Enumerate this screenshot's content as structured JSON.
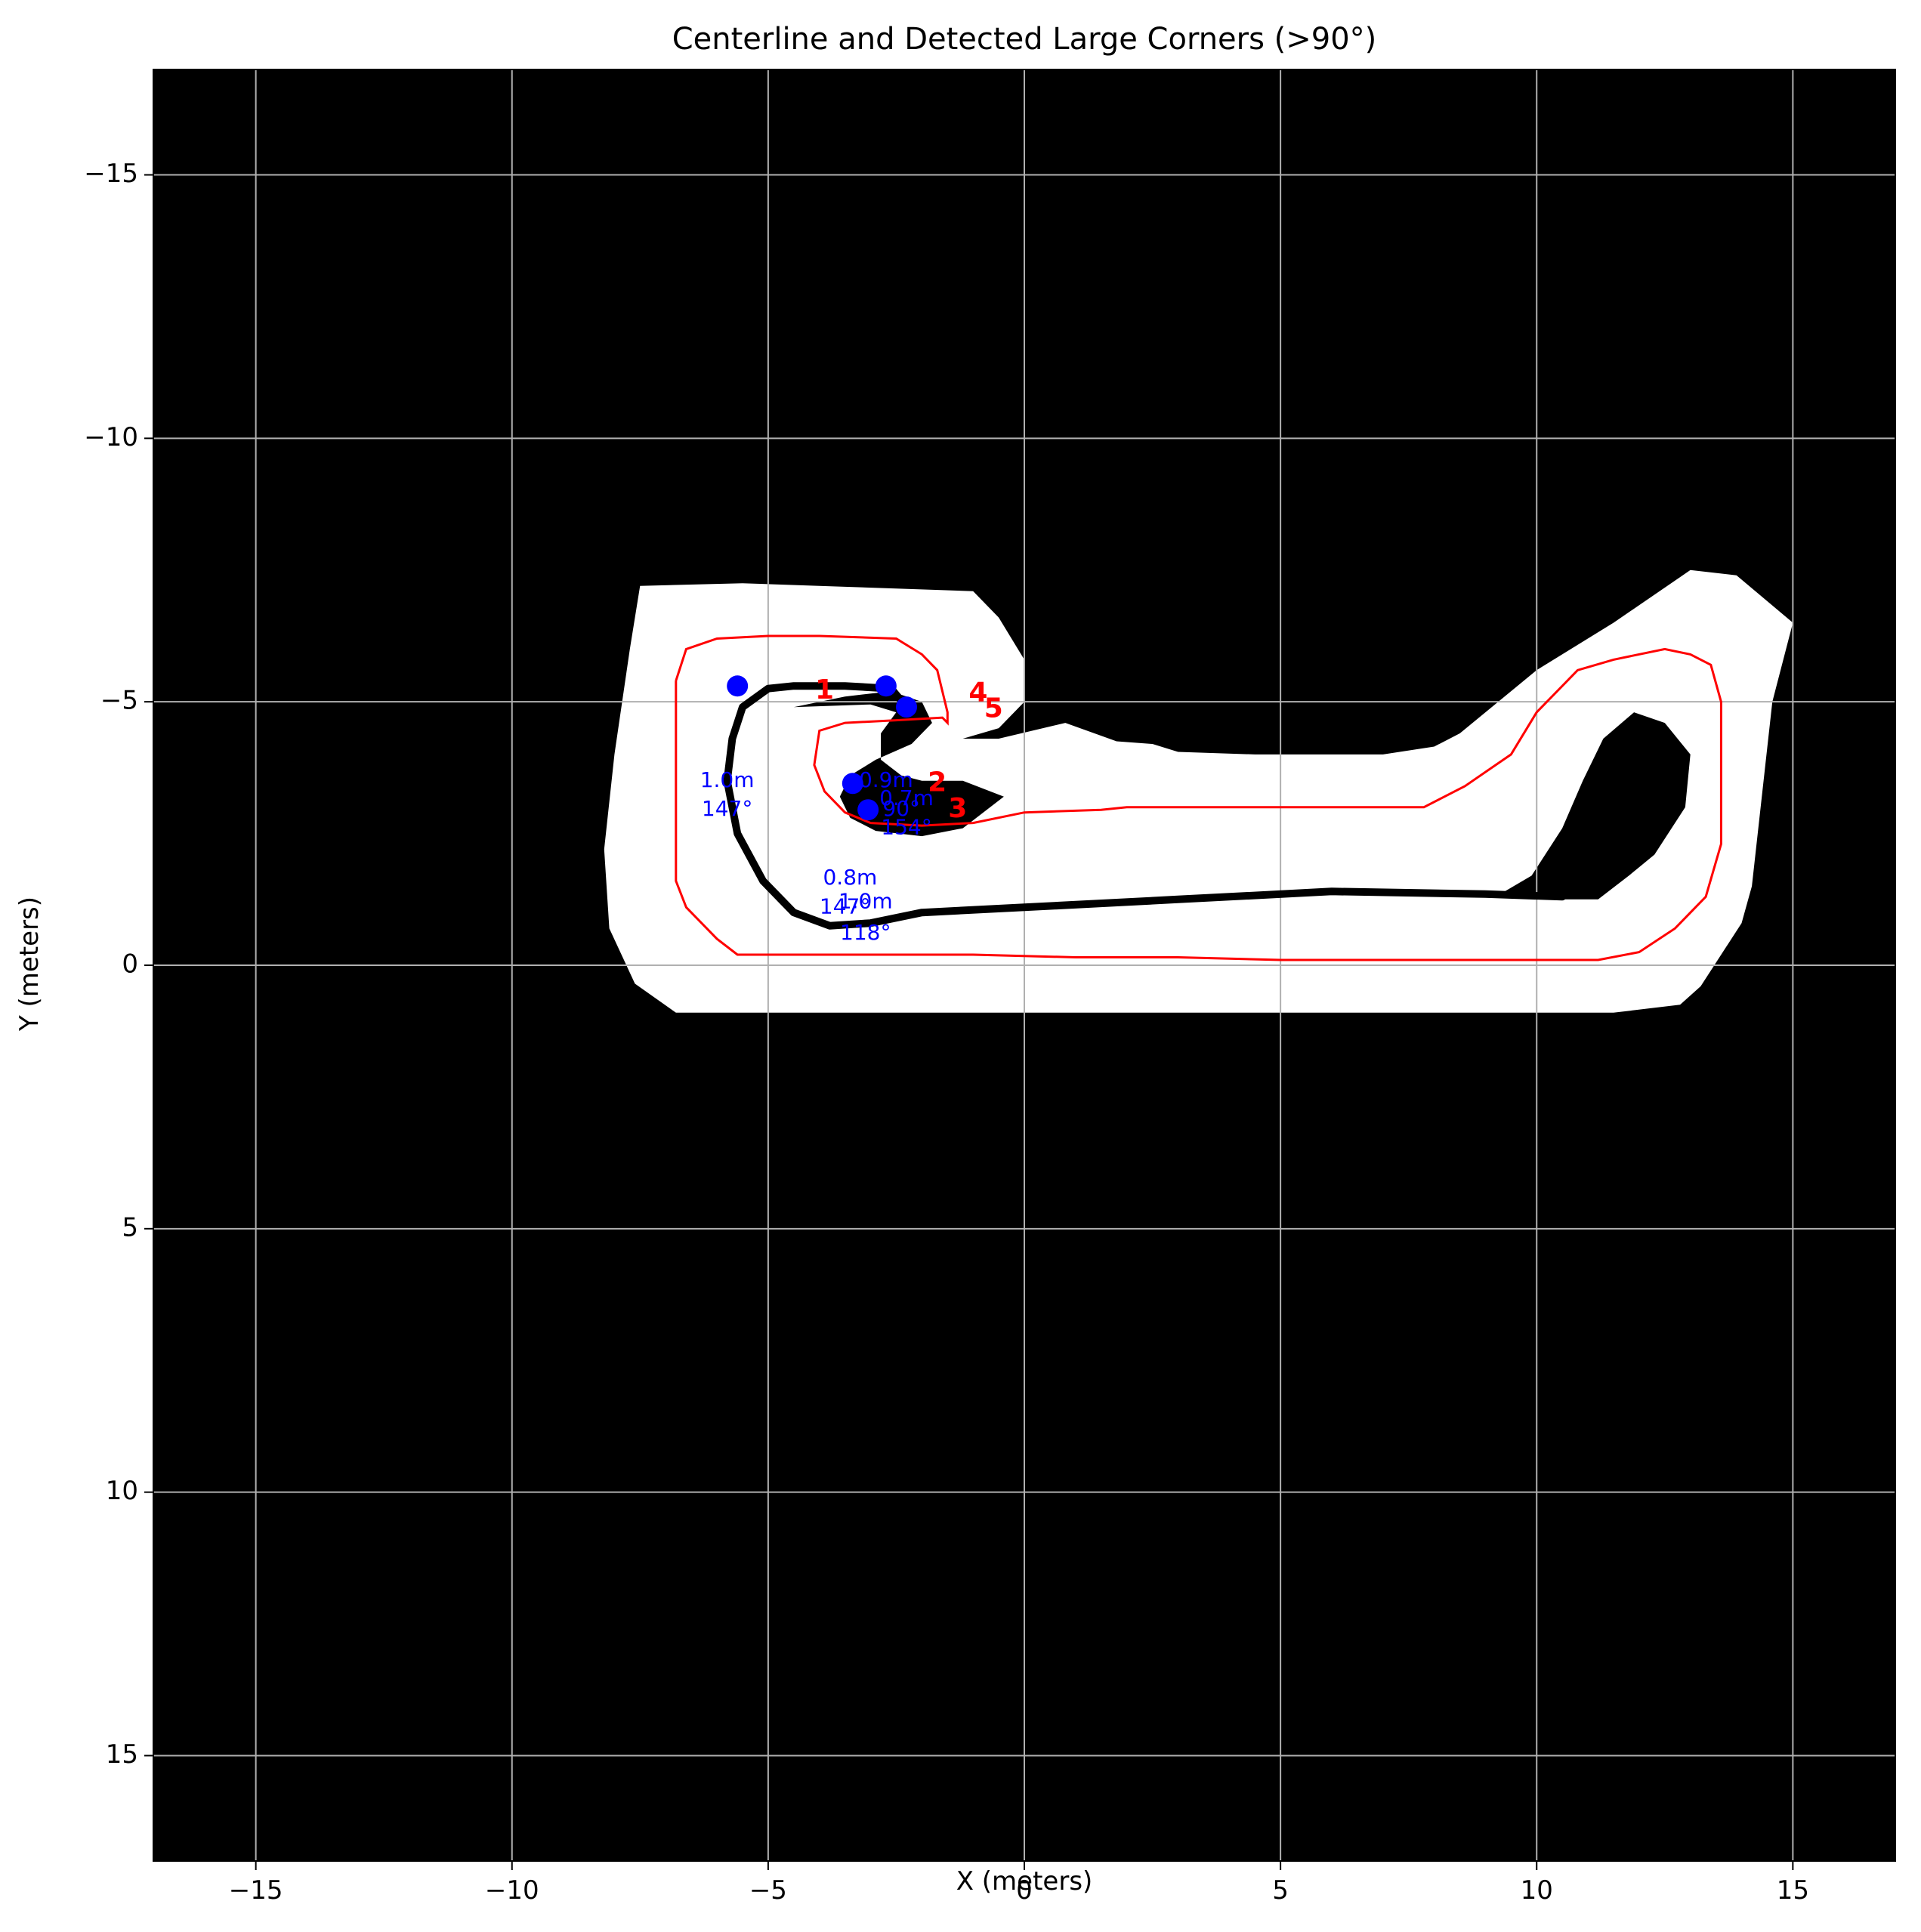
{
  "chart_data": {
    "type": "scatter",
    "title": "Centerline and Detected Large Corners (>90°)",
    "xlabel": "X (meters)",
    "ylabel": "Y (meters)",
    "xlim": [
      -17,
      17
    ],
    "ylim": [
      17,
      -17
    ],
    "y_inverted": true,
    "grid": true,
    "background": "#000000",
    "colors": {
      "track": "#ffffff",
      "centerline": "#ff0000",
      "path": "#000000",
      "corner": "#0000ff",
      "label": "#ff0000",
      "grid": "#b0b0b0"
    },
    "xticks": [
      -15,
      -10,
      -5,
      0,
      5,
      10,
      15
    ],
    "yticks": [
      -15,
      -10,
      -5,
      0,
      5,
      10,
      15
    ],
    "xtick_labels": [
      "−15",
      "−10",
      "−5",
      "0",
      "5",
      "10",
      "15"
    ],
    "ytick_labels": [
      "−15",
      "−10",
      "−5",
      "0",
      "5",
      "10",
      "15"
    ],
    "track_outer": [
      [
        -7.5,
        -7.2
      ],
      [
        -5.5,
        -7.25
      ],
      [
        -4,
        -7.2
      ],
      [
        -1,
        -7.1
      ],
      [
        -0.5,
        -6.6
      ],
      [
        0,
        -5.8
      ],
      [
        0,
        -5.0
      ],
      [
        -0.5,
        -4.5
      ],
      [
        -1.2,
        -4.3
      ],
      [
        -0.5,
        -4.3
      ],
      [
        0.8,
        -4.6
      ],
      [
        1.8,
        -4.25
      ],
      [
        2.5,
        -4.2
      ],
      [
        3,
        -4.05
      ],
      [
        4.5,
        -4.0
      ],
      [
        7,
        -4.0
      ],
      [
        8,
        -4.15
      ],
      [
        8.5,
        -4.4
      ],
      [
        9,
        -4.8
      ],
      [
        10,
        -5.6
      ],
      [
        11.5,
        -6.5
      ],
      [
        13,
        -7.5
      ],
      [
        13.9,
        -7.4
      ],
      [
        15,
        -6.5
      ],
      [
        14.6,
        -5.0
      ],
      [
        14.2,
        -1.5
      ],
      [
        14.0,
        -0.8
      ],
      [
        13.2,
        0.4
      ],
      [
        12.8,
        0.75
      ],
      [
        11.5,
        0.9
      ],
      [
        9,
        0.9
      ],
      [
        6,
        0.9
      ],
      [
        3,
        0.9
      ],
      [
        0,
        0.9
      ],
      [
        -3,
        0.9
      ],
      [
        -6.8,
        0.9
      ],
      [
        -7.6,
        0.35
      ],
      [
        -8.1,
        -0.7
      ],
      [
        -8.2,
        -2.2
      ],
      [
        -8.0,
        -4.0
      ],
      [
        -7.7,
        -6.0
      ],
      [
        -7.5,
        -7.2
      ]
    ],
    "track_inner_hole": [
      [
        -4.5,
        -4.9
      ],
      [
        -3.5,
        -5.1
      ],
      [
        -2.6,
        -5.2
      ],
      [
        -2.0,
        -5.0
      ],
      [
        -1.8,
        -4.6
      ],
      [
        -2.2,
        -4.2
      ],
      [
        -2.9,
        -3.9
      ],
      [
        -3.4,
        -3.6
      ],
      [
        -3.6,
        -3.2
      ],
      [
        -3.4,
        -2.8
      ],
      [
        -2.9,
        -2.55
      ],
      [
        -2.0,
        -2.45
      ],
      [
        -1.2,
        -2.6
      ],
      [
        -0.4,
        -3.2
      ],
      [
        -1.2,
        -3.5
      ],
      [
        -2.0,
        -3.5
      ],
      [
        -2.4,
        -3.6
      ],
      [
        -2.8,
        -3.9
      ],
      [
        -2.8,
        -4.4
      ],
      [
        -2.5,
        -4.8
      ],
      [
        -3.0,
        -4.95
      ],
      [
        -4.5,
        -4.9
      ]
    ],
    "track_loop_hole": [
      [
        9.2,
        -1.3
      ],
      [
        9.9,
        -1.7
      ],
      [
        10.5,
        -2.6
      ],
      [
        10.9,
        -3.5
      ],
      [
        11.3,
        -4.3
      ],
      [
        11.9,
        -4.8
      ],
      [
        12.5,
        -4.6
      ],
      [
        13.0,
        -4.0
      ],
      [
        12.9,
        -3.0
      ],
      [
        12.3,
        -2.1
      ],
      [
        11.8,
        -1.7
      ],
      [
        11.2,
        -1.25
      ],
      [
        10.5,
        -1.25
      ],
      [
        9.2,
        -1.3
      ]
    ],
    "centerline": [
      [
        -6.8,
        -5.4
      ],
      [
        -6.6,
        -6.0
      ],
      [
        -6.0,
        -6.2
      ],
      [
        -5.0,
        -6.25
      ],
      [
        -4.0,
        -6.25
      ],
      [
        -2.5,
        -6.2
      ],
      [
        -2.0,
        -5.9
      ],
      [
        -1.7,
        -5.6
      ],
      [
        -1.6,
        -5.2
      ],
      [
        -1.5,
        -4.8
      ],
      [
        -1.5,
        -4.6
      ],
      [
        -1.6,
        -4.7
      ],
      [
        -2.5,
        -4.65
      ],
      [
        -3.5,
        -4.6
      ],
      [
        -4.0,
        -4.45
      ],
      [
        -4.1,
        -3.8
      ],
      [
        -3.9,
        -3.3
      ],
      [
        -3.5,
        -2.9
      ],
      [
        -3.0,
        -2.7
      ],
      [
        -2.0,
        -2.65
      ],
      [
        -1.0,
        -2.7
      ],
      [
        0,
        -2.9
      ],
      [
        1.5,
        -2.95
      ],
      [
        2,
        -3.0
      ],
      [
        3,
        -3.0
      ],
      [
        5,
        -3.0
      ],
      [
        7,
        -3.0
      ],
      [
        7.8,
        -3.0
      ],
      [
        8.6,
        -3.4
      ],
      [
        9.5,
        -4.0
      ],
      [
        10,
        -4.8
      ],
      [
        10.8,
        -5.6
      ],
      [
        11.5,
        -5.8
      ],
      [
        12.5,
        -6.0
      ],
      [
        13.0,
        -5.9
      ],
      [
        13.4,
        -5.7
      ],
      [
        13.6,
        -5.0
      ],
      [
        13.6,
        -4.5
      ],
      [
        13.6,
        -3.5
      ],
      [
        13.6,
        -2.3
      ],
      [
        13.3,
        -1.3
      ],
      [
        12.7,
        -0.7
      ],
      [
        12.0,
        -0.25
      ],
      [
        11.2,
        -0.1
      ],
      [
        9,
        -0.1
      ],
      [
        7,
        -0.1
      ],
      [
        5,
        -0.1
      ],
      [
        3,
        -0.15
      ],
      [
        1,
        -0.15
      ],
      [
        -1,
        -0.2
      ],
      [
        -2.5,
        -0.2
      ],
      [
        -3.5,
        -0.2
      ],
      [
        -5,
        -0.2
      ],
      [
        -5.6,
        -0.2
      ],
      [
        -6.0,
        -0.5
      ],
      [
        -6.6,
        -1.1
      ],
      [
        -6.8,
        -1.6
      ],
      [
        -6.8,
        -2.8
      ],
      [
        -6.8,
        -3.4
      ],
      [
        -6.8,
        -4.5
      ],
      [
        -6.8,
        -5.4
      ]
    ],
    "path": [
      [
        -2.3,
        -4.9
      ],
      [
        -2.6,
        -5.25
      ],
      [
        -3.5,
        -5.3
      ],
      [
        -4.5,
        -5.3
      ],
      [
        -5.0,
        -5.25
      ],
      [
        -5.5,
        -4.9
      ],
      [
        -5.7,
        -4.3
      ],
      [
        -5.8,
        -3.5
      ],
      [
        -5.6,
        -2.5
      ],
      [
        -5.1,
        -1.6
      ],
      [
        -4.5,
        -1.0
      ],
      [
        -3.8,
        -0.75
      ],
      [
        -3.0,
        -0.8
      ],
      [
        -2.0,
        -1.0
      ],
      [
        0,
        -1.1
      ],
      [
        3,
        -1.25
      ],
      [
        6,
        -1.4
      ],
      [
        9,
        -1.35
      ],
      [
        10.5,
        -1.3
      ]
    ],
    "path_hook": [
      [
        -3.1,
        -3.35
      ],
      [
        -2.6,
        -3.2
      ],
      [
        -1.7,
        -3.15
      ],
      [
        -1.2,
        -3.2
      ]
    ],
    "corners": [
      {
        "x": -5.6,
        "y": -5.3
      },
      {
        "x": -2.7,
        "y": -5.3
      },
      {
        "x": -2.3,
        "y": -4.9
      },
      {
        "x": -3.35,
        "y": -3.45
      },
      {
        "x": -3.05,
        "y": -2.95
      }
    ],
    "corner_numbers": [
      {
        "text": "1",
        "x": -3.9,
        "y": -5.2
      },
      {
        "text": "2",
        "x": -1.7,
        "y": -3.45
      },
      {
        "text": "3",
        "x": -1.3,
        "y": -2.95
      },
      {
        "text": "4",
        "x": -0.9,
        "y": -5.15
      },
      {
        "text": "5",
        "x": -0.6,
        "y": -4.85
      }
    ],
    "corner_annotations": [
      {
        "text": "1.0m",
        "x": -5.8,
        "y": -3.5
      },
      {
        "text": "147°",
        "x": -5.8,
        "y": -2.95
      },
      {
        "text": "0.9m",
        "x": -2.7,
        "y": -3.5
      },
      {
        "text": "0.7m",
        "x": -2.3,
        "y": -3.15
      },
      {
        "text": "90°",
        "x": -2.4,
        "y": -2.95
      },
      {
        "text": "154°",
        "x": -2.3,
        "y": -2.6
      },
      {
        "text": "0.8m",
        "x": -3.4,
        "y": -1.65
      },
      {
        "text": "147°",
        "x": -3.5,
        "y": -1.1
      },
      {
        "text": "1.0m",
        "x": -3.1,
        "y": -1.2
      },
      {
        "text": "118°",
        "x": -3.1,
        "y": -0.6
      }
    ]
  }
}
